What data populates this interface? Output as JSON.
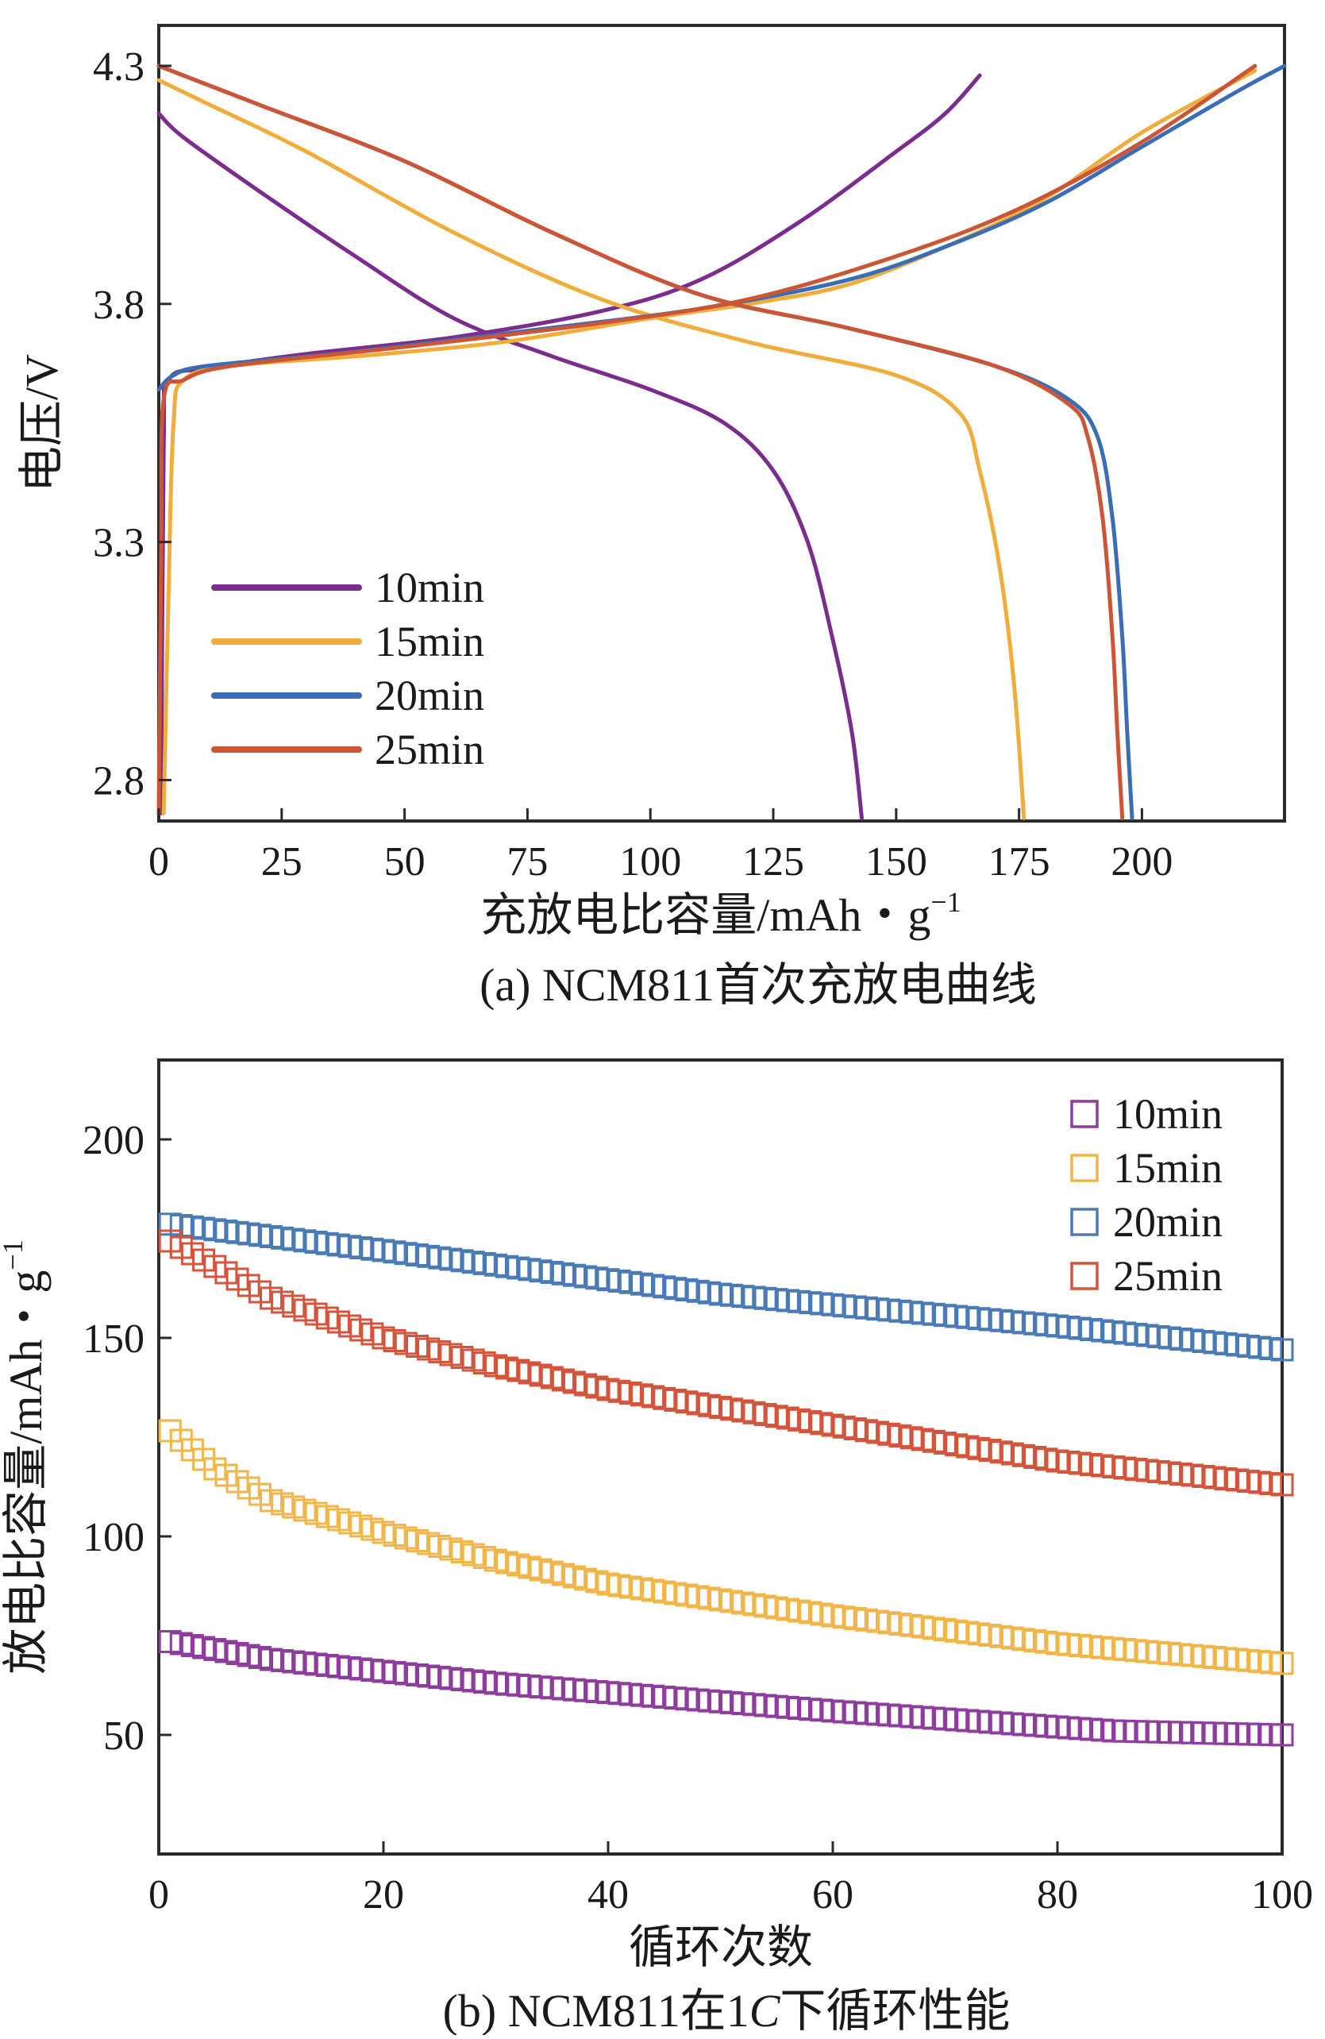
{
  "chart_data": [
    {
      "type": "line",
      "title": "",
      "caption": "(a) NCM811首次充放电曲线",
      "xlabel": "充放电比容量/mAh・g",
      "xlabel_sup": "−1",
      "ylabel": "电压/V",
      "xlim": [
        0,
        229
      ],
      "ylim": [
        2.714,
        4.385
      ],
      "xticks": [
        0,
        25,
        50,
        75,
        100,
        125,
        150,
        175,
        200
      ],
      "xtick_labels": [
        "0",
        "25",
        "50",
        "75",
        "100",
        "125",
        "150",
        "175",
        "200"
      ],
      "yticks": [
        2.8,
        3.3,
        3.8,
        4.3
      ],
      "ytick_labels": [
        "2.8",
        "3.3",
        "3.8",
        "4.3"
      ],
      "legend_position": "lower-left",
      "series": [
        {
          "name": "10min",
          "color": "#7b2d8e",
          "charge": [
            [
              0.5,
              2.73
            ],
            [
              1,
              3.5
            ],
            [
              2,
              3.64
            ],
            [
              10,
              3.665
            ],
            [
              30,
              3.695
            ],
            [
              60,
              3.73
            ],
            [
              90,
              3.785
            ],
            [
              110,
              3.85
            ],
            [
              130,
              3.97
            ],
            [
              150,
              4.12
            ],
            [
              160,
              4.2
            ],
            [
              167,
              4.28
            ]
          ],
          "discharge": [
            [
              0,
              4.2
            ],
            [
              5,
              4.15
            ],
            [
              20,
              4.04
            ],
            [
              40,
              3.9
            ],
            [
              60,
              3.77
            ],
            [
              80,
              3.69
            ],
            [
              100,
              3.62
            ],
            [
              115,
              3.55
            ],
            [
              125,
              3.45
            ],
            [
              132,
              3.3
            ],
            [
              137,
              3.1
            ],
            [
              141,
              2.9
            ],
            [
              143,
              2.72
            ]
          ]
        },
        {
          "name": "15min",
          "color": "#f0ad3c",
          "charge": [
            [
              1,
              2.73
            ],
            [
              2,
              3.2
            ],
            [
              3,
              3.55
            ],
            [
              5,
              3.64
            ],
            [
              15,
              3.67
            ],
            [
              40,
              3.69
            ],
            [
              70,
              3.72
            ],
            [
              100,
              3.77
            ],
            [
              120,
              3.8
            ],
            [
              140,
              3.84
            ],
            [
              160,
              3.92
            ],
            [
              180,
              4.02
            ],
            [
              200,
              4.16
            ],
            [
              223,
              4.29
            ]
          ],
          "discharge": [
            [
              0,
              4.27
            ],
            [
              10,
              4.22
            ],
            [
              30,
              4.12
            ],
            [
              60,
              3.95
            ],
            [
              90,
              3.81
            ],
            [
              120,
              3.72
            ],
            [
              150,
              3.65
            ],
            [
              163,
              3.57
            ],
            [
              167,
              3.45
            ],
            [
              171,
              3.25
            ],
            [
              174,
              3.0
            ],
            [
              176,
              2.72
            ]
          ]
        },
        {
          "name": "20min",
          "color": "#3a6db5",
          "charge": [
            [
              0,
              3.62
            ],
            [
              3,
              3.65
            ],
            [
              10,
              3.67
            ],
            [
              40,
              3.7
            ],
            [
              80,
              3.75
            ],
            [
              110,
              3.79
            ],
            [
              140,
              3.85
            ],
            [
              160,
              3.92
            ],
            [
              180,
              4.01
            ],
            [
              200,
              4.13
            ],
            [
              220,
              4.25
            ],
            [
              229,
              4.3
            ]
          ],
          "discharge": [
            [
              0,
              4.3
            ],
            [
              20,
              4.22
            ],
            [
              50,
              4.1
            ],
            [
              80,
              3.95
            ],
            [
              110,
              3.82
            ],
            [
              140,
              3.75
            ],
            [
              170,
              3.67
            ],
            [
              185,
              3.6
            ],
            [
              191,
              3.52
            ],
            [
              194,
              3.35
            ],
            [
              196,
              3.1
            ],
            [
              197,
              2.9
            ],
            [
              198,
              2.72
            ]
          ]
        },
        {
          "name": "25min",
          "color": "#cc5535",
          "charge": [
            [
              0,
              2.73
            ],
            [
              0.5,
              3.3
            ],
            [
              1,
              3.6
            ],
            [
              5,
              3.64
            ],
            [
              15,
              3.67
            ],
            [
              50,
              3.71
            ],
            [
              90,
              3.76
            ],
            [
              120,
              3.81
            ],
            [
              150,
              3.9
            ],
            [
              175,
              4.0
            ],
            [
              200,
              4.14
            ],
            [
              223,
              4.3
            ]
          ],
          "discharge": [
            [
              0,
              4.3
            ],
            [
              20,
              4.22
            ],
            [
              50,
              4.1
            ],
            [
              80,
              3.95
            ],
            [
              110,
              3.82
            ],
            [
              140,
              3.75
            ],
            [
              170,
              3.67
            ],
            [
              185,
              3.59
            ],
            [
              189,
              3.52
            ],
            [
              192,
              3.35
            ],
            [
              194,
              3.1
            ],
            [
              195,
              2.9
            ],
            [
              196,
              2.72
            ]
          ]
        }
      ]
    },
    {
      "type": "scatter",
      "title": "",
      "caption": "(b) NCM811在1C下循环性能",
      "caption_prefix": "(b) NCM811在1",
      "caption_italic": "C",
      "caption_suffix": "下循环性能",
      "xlabel": "循环次数",
      "ylabel": "放电比容量/mAh・g",
      "ylabel_sup": "−1",
      "xlim": [
        0,
        100
      ],
      "ylim": [
        20,
        220
      ],
      "xticks": [
        0,
        20,
        40,
        60,
        80,
        100
      ],
      "xtick_labels": [
        "0",
        "20",
        "40",
        "60",
        "80",
        "100"
      ],
      "yticks": [
        50,
        100,
        150,
        200
      ],
      "ytick_labels": [
        "50",
        "100",
        "150",
        "200"
      ],
      "marker": "open-square",
      "legend_position": "top-right",
      "series": [
        {
          "name": "10min",
          "color": "#8e3c9e",
          "anchors": [
            [
              0,
              74
            ],
            [
              10,
              69
            ],
            [
              30,
              63
            ],
            [
              60,
              56
            ],
            [
              85,
              51
            ],
            [
              100,
              50
            ]
          ]
        },
        {
          "name": "15min",
          "color": "#f1b54a",
          "anchors": [
            [
              0,
              129
            ],
            [
              5,
              117
            ],
            [
              10,
              109
            ],
            [
              20,
              101
            ],
            [
              30,
              94
            ],
            [
              40,
              88
            ],
            [
              60,
              80
            ],
            [
              80,
              73
            ],
            [
              100,
              68
            ]
          ]
        },
        {
          "name": "20min",
          "color": "#4a7bb7",
          "anchors": [
            [
              0,
              179
            ],
            [
              20,
              172
            ],
            [
              50,
              161
            ],
            [
              80,
              153
            ],
            [
              100,
              147
            ]
          ]
        },
        {
          "name": "25min",
          "color": "#d3553b",
          "anchors": [
            [
              0,
              176
            ],
            [
              10,
              160
            ],
            [
              20,
              150
            ],
            [
              30,
              143
            ],
            [
              40,
              137
            ],
            [
              60,
              128
            ],
            [
              80,
              119
            ],
            [
              100,
              113
            ]
          ]
        }
      ]
    }
  ]
}
